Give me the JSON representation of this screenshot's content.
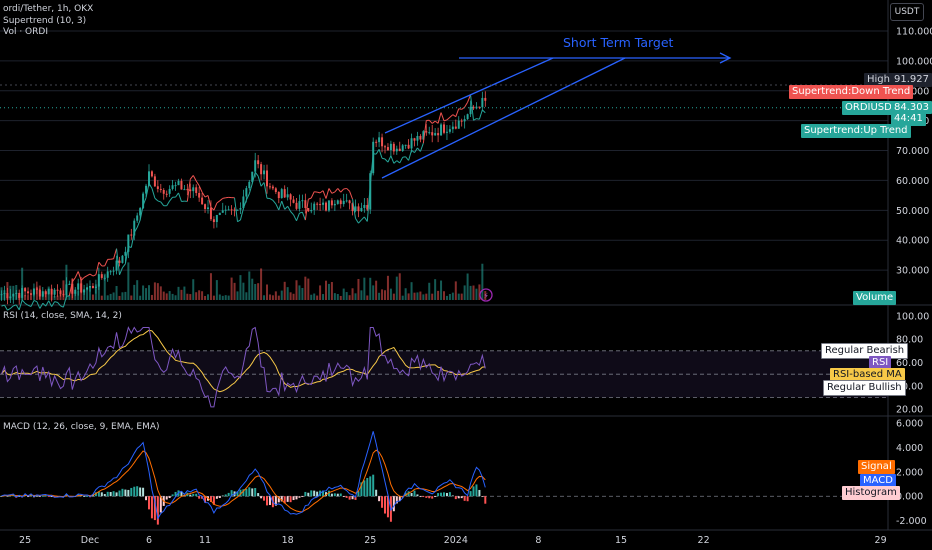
{
  "header": {
    "symbol_line": "ordi/Tether, 1h, OKX",
    "supertrend_line": "Supertrend (10, 3)",
    "vol_line": "Vol · ORDI",
    "currency": "USDT"
  },
  "colors": {
    "background": "#000000",
    "up": "#26a69a",
    "down": "#ef5350",
    "drawing": "#2962ff",
    "rsi": "#7e57c2",
    "rsi_ma": "#f7c948",
    "macd": "#2962ff",
    "signal": "#ff6d00"
  },
  "labels": {
    "high_name": "High",
    "high_value": "91.927",
    "downtrend": "Supertrend:Down Trend",
    "symbol_tag": "ORDIUSDT",
    "symbol_price": "84.303",
    "countdown": "44:41",
    "uptrend": "Supertrend:Up Trend",
    "volume": "Volume",
    "target": "Short Term Target",
    "regular_bearish": "Regular Bearish",
    "rsi": "RSI",
    "rsi_ma": "RSI-based MA",
    "regular_bullish": "Regular Bullish",
    "signal": "Signal",
    "macd": "MACD",
    "histogram": "Histogram"
  },
  "panes": {
    "rsi_title": "RSI (14, close, SMA, 14, 2)",
    "macd_title": "MACD (12, 26, close, 9, EMA, EMA)"
  },
  "chart_data": [
    {
      "type": "candlestick",
      "title": "ordi/Tether, 1h, OKX",
      "y_ticks": [
        "110.000",
        "100.000",
        "90.000",
        "80.000",
        "70.000",
        "60.000",
        "50.000",
        "40.000",
        "30.000"
      ],
      "ylim": [
        20,
        113
      ],
      "x_ticks": [
        "25",
        "Dec",
        "6",
        "11",
        "18",
        "25",
        "2024",
        "8",
        "15",
        "22",
        "29"
      ],
      "price_path": [
        {
          "t": 0,
          "price": 22
        },
        {
          "t": 15,
          "price": 23
        },
        {
          "t": 30,
          "price": 24
        },
        {
          "t": 40,
          "price": 33
        },
        {
          "t": 45,
          "price": 45
        },
        {
          "t": 50,
          "price": 62
        },
        {
          "t": 54,
          "price": 57
        },
        {
          "t": 60,
          "price": 58
        },
        {
          "t": 66,
          "price": 56
        },
        {
          "t": 72,
          "price": 47
        },
        {
          "t": 80,
          "price": 50
        },
        {
          "t": 86,
          "price": 66
        },
        {
          "t": 92,
          "price": 57
        },
        {
          "t": 100,
          "price": 52
        },
        {
          "t": 110,
          "price": 51
        },
        {
          "t": 114,
          "price": 55
        },
        {
          "t": 118,
          "price": 51
        },
        {
          "t": 124,
          "price": 52
        },
        {
          "t": 126,
          "price": 74
        },
        {
          "t": 134,
          "price": 71
        },
        {
          "t": 146,
          "price": 76
        },
        {
          "t": 156,
          "price": 80
        },
        {
          "t": 162,
          "price": 86
        }
      ],
      "supertrend_levels": [
        "Down Trend",
        "Up Trend"
      ],
      "high": 91.927,
      "last": 84.303,
      "annotation": "Short Term Target"
    },
    {
      "type": "line",
      "title": "RSI (14, close, SMA, 14, 2)",
      "y_ticks": [
        "100.00",
        "80.00",
        "60.00",
        "40.00",
        "20.00"
      ],
      "ylim": [
        15,
        105
      ],
      "bands": [
        70,
        30
      ],
      "series": [
        {
          "name": "RSI"
        },
        {
          "name": "RSI-based MA"
        }
      ],
      "last_rsi": 55
    },
    {
      "type": "line",
      "title": "MACD (12, 26, close, 9, EMA, EMA)",
      "y_ticks": [
        "6.000",
        "4.000",
        "2.000",
        "0.000",
        "-2.000"
      ],
      "ylim": [
        -2.6,
        6.4
      ],
      "series": [
        {
          "name": "MACD"
        },
        {
          "name": "Signal"
        },
        {
          "name": "Histogram"
        }
      ],
      "macd_path": [
        {
          "t": 0,
          "v": 0
        },
        {
          "t": 30,
          "v": 0.1
        },
        {
          "t": 40,
          "v": 1.8
        },
        {
          "t": 48,
          "v": 4.4
        },
        {
          "t": 53,
          "v": -1.8
        },
        {
          "t": 60,
          "v": 0.2
        },
        {
          "t": 66,
          "v": 0.5
        },
        {
          "t": 72,
          "v": -1.2
        },
        {
          "t": 80,
          "v": 0.3
        },
        {
          "t": 86,
          "v": 2.2
        },
        {
          "t": 92,
          "v": -0.4
        },
        {
          "t": 100,
          "v": -1.6
        },
        {
          "t": 108,
          "v": 0.3
        },
        {
          "t": 114,
          "v": 0.9
        },
        {
          "t": 120,
          "v": 0.1
        },
        {
          "t": 126,
          "v": 5.4
        },
        {
          "t": 132,
          "v": -1.0
        },
        {
          "t": 140,
          "v": 1.0
        },
        {
          "t": 146,
          "v": 0.3
        },
        {
          "t": 152,
          "v": 1.2
        },
        {
          "t": 158,
          "v": 0.2
        },
        {
          "t": 161,
          "v": 2.5
        },
        {
          "t": 164,
          "v": 0.9
        }
      ]
    }
  ]
}
